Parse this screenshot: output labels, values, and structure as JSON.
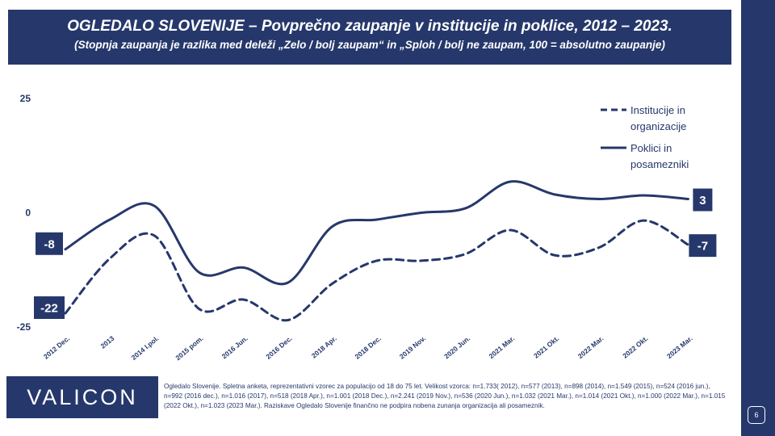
{
  "header": {
    "title": "OGLEDALO SLOVENIJE – Povprečno zaupanje v institucije in poklice, 2012 – 2023.",
    "subtitle": "(Stopnja zaupanja je razlika med deleži „Zelo / bolj zaupam“ in „Sploh / bolj ne zaupam, 100 = absolutno zaupanje)"
  },
  "logo": "VALICON",
  "footnote": "Ogledalo Slovenije. Spletna anketa, reprezentativni vzorec za populacijo od 18 do 75 let. Velikost vzorca: n=1.733( 2012), n=577 (2013), n=898 (2014), n=1.549 (2015), n=524 (2016 jun.), n=992 (2016 dec.), n=1.016 (2017), n=518 (2018 Apr.), n=1.001 (2018 Dec.), n=2.241 (2019 Nov.), n=536 (2020 Jun.), n=1.032 (2021 Mar.), n=1.014 (2021 Okt.), n=1.000 (2022 Mar.), n=1.015 (2022 Okt.), n=1.023 (2023 Mar.). Raziskave Ogledalo Slovenije finančno ne podpira nobena zunanja organizacija ali posameznik.",
  "page_number": "6",
  "colors": {
    "navy": "#26386b"
  },
  "chart_data": {
    "type": "line",
    "categories": [
      "2012 Dec.",
      "2013",
      "2014 I.pol.",
      "2015 pom.",
      "2016 Jun.",
      "2016 Dec.",
      "2018 Apr.",
      "2018 Dec.",
      "2019 Nov.",
      "2020 Jun.",
      "2021 Mar.",
      "2021 Okt.",
      "2022 Mar.",
      "2022 Okt.",
      "2023 Mar."
    ],
    "ylim": [
      -25,
      25
    ],
    "y_tick_labels": [
      "25",
      "0",
      "-25"
    ],
    "y_ticks": [
      25,
      0,
      -25
    ],
    "grid": false,
    "legend_position": "top-right",
    "series": [
      {
        "name": "Institucije in organizacije",
        "name_lines": [
          "Institucije in",
          "organizacije"
        ],
        "style": "dashed",
        "values": [
          -22,
          -10,
          -5,
          -21,
          -19,
          -23.5,
          -15.5,
          -10.5,
          -10.5,
          -9,
          -3.8,
          -9.3,
          -7.6,
          -1.7,
          -7
        ],
        "end_labels": {
          "first": "-22",
          "last": "-7"
        }
      },
      {
        "name": "Poklici in posamezniki",
        "name_lines": [
          "Poklici in",
          "posamezniki"
        ],
        "style": "solid",
        "values": [
          -8,
          -1.5,
          1.5,
          -13,
          -12,
          -15.3,
          -3,
          -1.5,
          0,
          1,
          6.8,
          4,
          3,
          3.8,
          3
        ],
        "end_labels": {
          "first": "-8",
          "last": "3"
        }
      }
    ]
  }
}
